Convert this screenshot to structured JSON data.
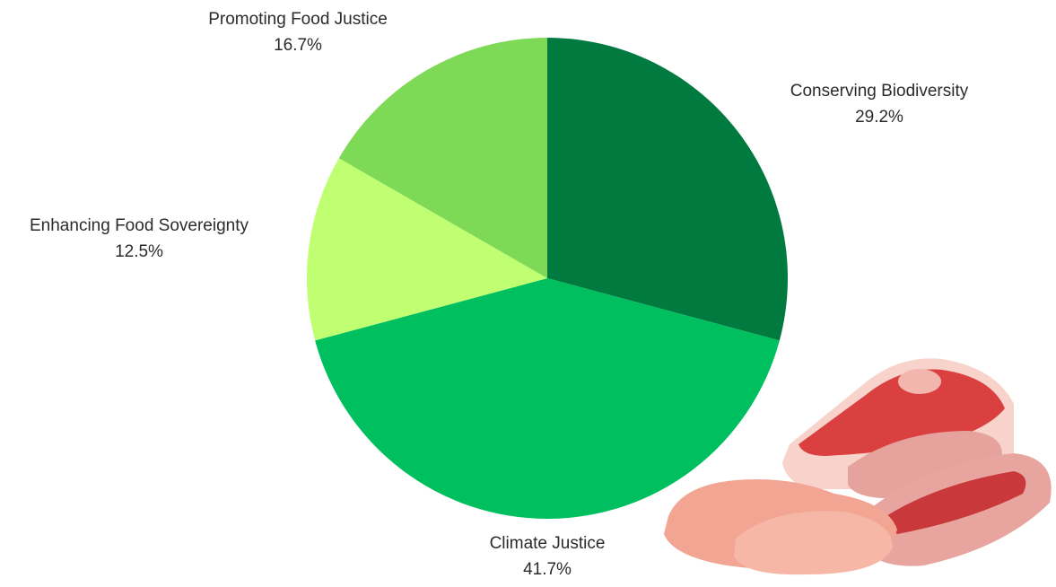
{
  "chart_data": {
    "type": "pie",
    "categories": [
      "Conserving Biodiversity",
      "Climate Justice",
      "Enhancing Food Sovereignty",
      "Promoting Food Justice"
    ],
    "values": [
      29.2,
      41.7,
      12.5,
      16.7
    ],
    "value_labels": [
      "29.2%",
      "41.7%",
      "12.5%",
      "16.7%"
    ],
    "colors": [
      "#017a3f",
      "#00bf5f",
      "#c1ff72",
      "#7ed957"
    ]
  }
}
